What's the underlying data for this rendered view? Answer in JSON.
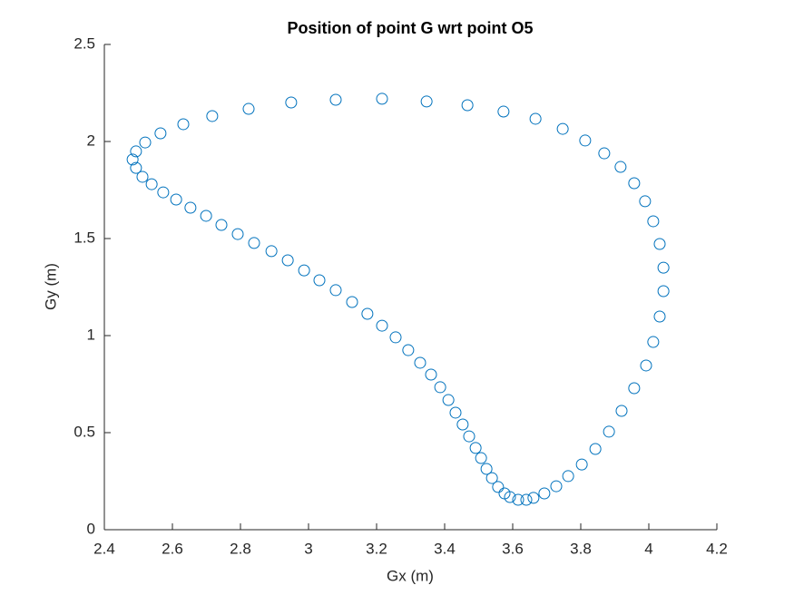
{
  "chart_data": {
    "type": "scatter",
    "title": "Position of point G wrt point O5",
    "xlabel": "Gx (m)",
    "ylabel": "Gy (m)",
    "color": "#0072bd",
    "marker": "open-circle",
    "x": [
      2.483,
      2.493,
      2.52,
      2.565,
      2.632,
      2.717,
      2.824,
      2.949,
      3.08,
      3.216,
      3.347,
      3.467,
      3.573,
      3.667,
      3.747,
      3.813,
      3.869,
      3.917,
      3.957,
      3.989,
      4.013,
      4.032,
      4.043,
      4.043,
      4.032,
      4.013,
      3.992,
      3.957,
      3.92,
      3.883,
      3.843,
      3.803,
      3.763,
      3.728,
      3.693,
      3.661,
      3.64,
      3.616,
      3.592,
      3.576,
      3.557,
      3.539,
      3.523,
      3.507,
      3.491,
      3.472,
      3.453,
      3.432,
      3.411,
      3.387,
      3.36,
      3.328,
      3.293,
      3.256,
      3.216,
      3.173,
      3.128,
      3.08,
      3.032,
      2.987,
      2.939,
      2.891,
      2.84,
      2.792,
      2.744,
      2.699,
      2.653,
      2.611,
      2.573,
      2.539,
      2.512,
      2.493
    ],
    "y": [
      1.907,
      1.949,
      1.995,
      2.042,
      2.089,
      2.131,
      2.168,
      2.201,
      2.215,
      2.22,
      2.206,
      2.187,
      2.154,
      2.117,
      2.065,
      2.005,
      1.939,
      1.869,
      1.785,
      1.692,
      1.589,
      1.472,
      1.35,
      1.229,
      1.098,
      0.967,
      0.846,
      0.729,
      0.612,
      0.505,
      0.416,
      0.336,
      0.276,
      0.224,
      0.187,
      0.164,
      0.154,
      0.154,
      0.168,
      0.187,
      0.22,
      0.266,
      0.313,
      0.369,
      0.421,
      0.481,
      0.542,
      0.603,
      0.668,
      0.734,
      0.799,
      0.86,
      0.925,
      0.991,
      1.051,
      1.112,
      1.173,
      1.234,
      1.285,
      1.336,
      1.388,
      1.435,
      1.477,
      1.523,
      1.57,
      1.617,
      1.659,
      1.701,
      1.738,
      1.78,
      1.818,
      1.864
    ],
    "xlim": [
      2.4,
      4.2
    ],
    "xticks": [
      2.4,
      2.6,
      2.8,
      {
        "value": 3,
        "label": "3"
      },
      3.2,
      3.4,
      3.6,
      3.8,
      {
        "value": 4,
        "label": "4"
      },
      4.2
    ],
    "ylim": [
      0,
      2.5
    ],
    "yticks": [
      0,
      0.5,
      1,
      1.5,
      2,
      2.5
    ],
    "grid": false
  }
}
